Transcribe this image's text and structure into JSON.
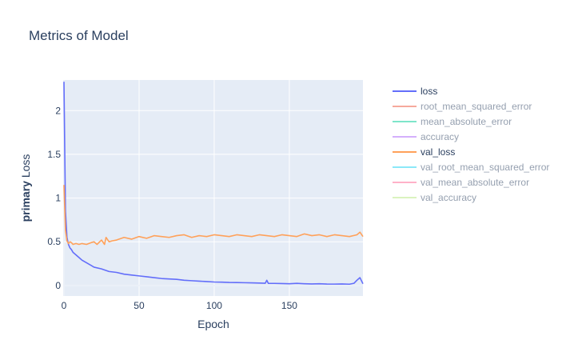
{
  "chart_data": {
    "type": "line",
    "title": "Metrics of Model",
    "xlabel": "Epoch",
    "ylabel_bold": "primary",
    "ylabel_rest": " Loss",
    "xlim": [
      0,
      199
    ],
    "ylim": [
      -0.12,
      2.35
    ],
    "xticks": [
      0,
      50,
      100,
      150
    ],
    "yticks": [
      0,
      0.5,
      1,
      1.5,
      2
    ],
    "ytick_labels": [
      "0",
      "0.5",
      "1",
      "1.5",
      "2"
    ],
    "grid": true,
    "legend_position": "right",
    "series": [
      {
        "name": "loss",
        "color": "#636efa",
        "visible": true,
        "x": [
          0,
          1,
          2,
          3,
          4,
          5,
          6,
          8,
          10,
          12,
          15,
          18,
          20,
          25,
          30,
          35,
          40,
          45,
          50,
          55,
          60,
          65,
          70,
          75,
          80,
          85,
          90,
          95,
          100,
          105,
          110,
          115,
          120,
          125,
          130,
          134,
          135,
          136,
          140,
          145,
          150,
          155,
          160,
          165,
          170,
          175,
          180,
          185,
          190,
          193,
          195,
          197,
          199
        ],
        "y": [
          2.33,
          0.85,
          0.55,
          0.47,
          0.43,
          0.41,
          0.38,
          0.35,
          0.32,
          0.29,
          0.26,
          0.23,
          0.21,
          0.19,
          0.16,
          0.15,
          0.13,
          0.12,
          0.11,
          0.1,
          0.09,
          0.08,
          0.075,
          0.07,
          0.06,
          0.055,
          0.05,
          0.045,
          0.04,
          0.038,
          0.035,
          0.034,
          0.032,
          0.03,
          0.028,
          0.026,
          0.06,
          0.025,
          0.024,
          0.022,
          0.02,
          0.025,
          0.02,
          0.018,
          0.02,
          0.017,
          0.016,
          0.018,
          0.015,
          0.025,
          0.06,
          0.09,
          0.02
        ]
      },
      {
        "name": "root_mean_squared_error",
        "color": "#ef553b",
        "visible": false
      },
      {
        "name": "mean_absolute_error",
        "color": "#00cc96",
        "visible": false
      },
      {
        "name": "accuracy",
        "color": "#ab63fa",
        "visible": false
      },
      {
        "name": "val_loss",
        "color": "#ffa15a",
        "visible": true,
        "x": [
          0,
          1,
          2,
          3,
          4,
          5,
          6,
          8,
          10,
          12,
          15,
          18,
          20,
          22,
          25,
          27,
          28,
          30,
          32,
          35,
          40,
          45,
          50,
          55,
          60,
          65,
          70,
          75,
          80,
          85,
          90,
          95,
          100,
          105,
          110,
          115,
          120,
          125,
          130,
          135,
          140,
          145,
          150,
          155,
          160,
          165,
          170,
          175,
          180,
          185,
          190,
          195,
          197,
          199
        ],
        "y": [
          1.15,
          0.63,
          0.51,
          0.48,
          0.5,
          0.49,
          0.47,
          0.48,
          0.47,
          0.48,
          0.47,
          0.49,
          0.5,
          0.47,
          0.52,
          0.47,
          0.55,
          0.5,
          0.51,
          0.52,
          0.55,
          0.53,
          0.56,
          0.54,
          0.57,
          0.56,
          0.55,
          0.57,
          0.58,
          0.55,
          0.57,
          0.56,
          0.58,
          0.57,
          0.56,
          0.58,
          0.57,
          0.56,
          0.58,
          0.57,
          0.56,
          0.58,
          0.57,
          0.56,
          0.59,
          0.57,
          0.58,
          0.56,
          0.58,
          0.57,
          0.56,
          0.58,
          0.61,
          0.56
        ]
      },
      {
        "name": "val_root_mean_squared_error",
        "color": "#19d3f3",
        "visible": false
      },
      {
        "name": "val_mean_absolute_error",
        "color": "#ff6692",
        "visible": false
      },
      {
        "name": "val_accuracy",
        "color": "#b6e880",
        "visible": false
      }
    ]
  }
}
